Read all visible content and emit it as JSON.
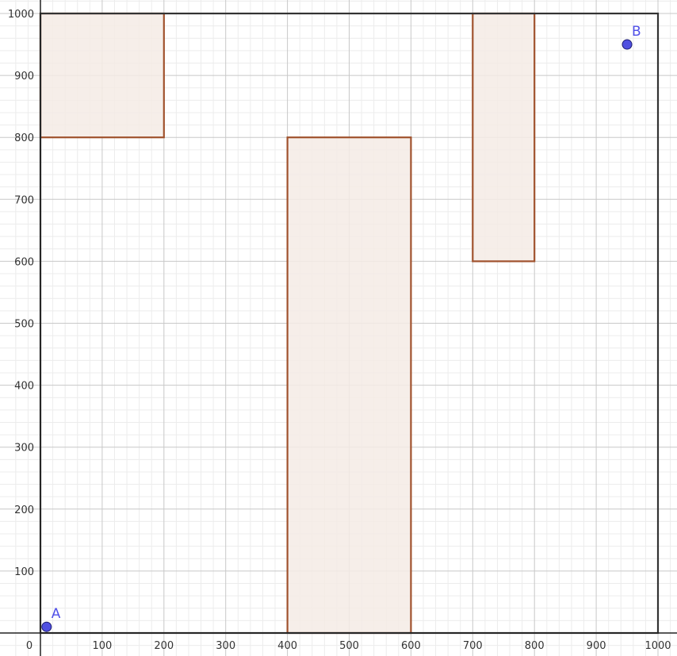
{
  "chart_data": {
    "type": "scatter",
    "title": "",
    "xlabel": "",
    "ylabel": "",
    "xlim": [
      -50,
      1030
    ],
    "ylim": [
      -37,
      1022
    ],
    "grid": true,
    "x_ticks": [
      0,
      100,
      200,
      300,
      400,
      500,
      600,
      700,
      800,
      900,
      1000
    ],
    "y_ticks": [
      100,
      200,
      300,
      400,
      500,
      600,
      700,
      800,
      900,
      1000
    ],
    "x_tick_labels": [
      "0",
      "100",
      "200",
      "300",
      "400",
      "500",
      "600",
      "700",
      "800",
      "900",
      "1000"
    ],
    "y_tick_labels": [
      "100",
      "200",
      "300",
      "400",
      "500",
      "600",
      "700",
      "800",
      "900",
      "1000"
    ],
    "boundary": {
      "x_min": 0,
      "y_min": 0,
      "x_max": 1000,
      "y_max": 1000
    },
    "rectangles": [
      {
        "x1": 0,
        "y1": 800,
        "x2": 200,
        "y2": 1000
      },
      {
        "x1": 400,
        "y1": 0,
        "x2": 600,
        "y2": 800
      },
      {
        "x1": 700,
        "y1": 600,
        "x2": 800,
        "y2": 1000
      }
    ],
    "points": [
      {
        "label": "A",
        "x": 10,
        "y": 10
      },
      {
        "label": "B",
        "x": 950,
        "y": 950
      }
    ],
    "colors": {
      "rect_stroke": "#a0522d",
      "rect_fill": "#f4ebe5",
      "point_fill": "#4f4fe0",
      "point_label": "#5050e8",
      "boundary": "#333333",
      "axis": "#222222",
      "major_grid": "#c8c8c8",
      "minor_grid": "#ececec"
    }
  }
}
